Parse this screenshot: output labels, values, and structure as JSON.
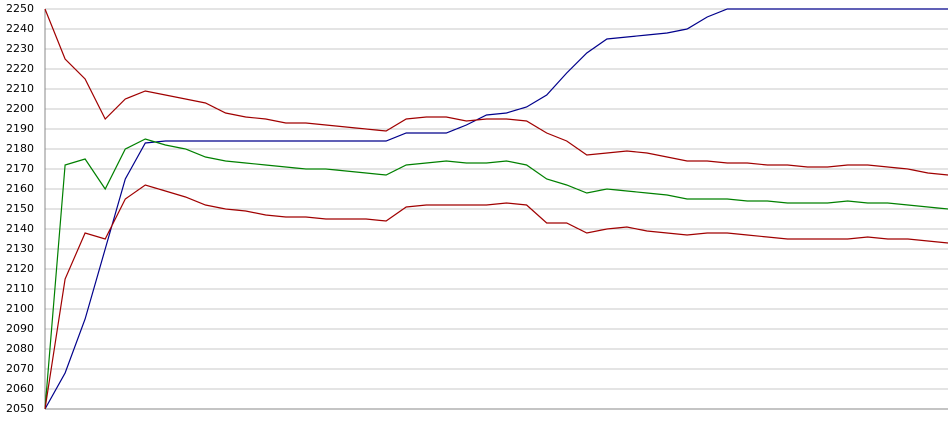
{
  "chart_data": {
    "type": "line",
    "categories": [
      null,
      null,
      null,
      null,
      null,
      null,
      null,
      null,
      null,
      null,
      null,
      null,
      null,
      null,
      null,
      null,
      null,
      null,
      null,
      null,
      null,
      null,
      null,
      null,
      null,
      null,
      null,
      null,
      null,
      null,
      null,
      null,
      null,
      null,
      null,
      null,
      null,
      null,
      null,
      null,
      null,
      null,
      null,
      null,
      null,
      null
    ],
    "series": [
      {
        "color": "#00008b",
        "values": [
          2050,
          2068,
          2095,
          2130,
          2165,
          2183,
          2184,
          2184,
          2184,
          2184,
          2184,
          2184,
          2184,
          2184,
          2184,
          2184,
          2184,
          2184,
          2188,
          2188,
          2188,
          2192,
          2197,
          2198,
          2201,
          2207,
          2218,
          2228,
          2235,
          2236,
          2237,
          2238,
          2240,
          2246,
          2250,
          2250,
          2250,
          2250,
          2250,
          2250,
          2250,
          2250,
          2250,
          2250,
          2250,
          2250
        ]
      },
      {
        "color": "#a00000",
        "values": [
          2250,
          2225,
          2215,
          2195,
          2205,
          2209,
          2207,
          2205,
          2203,
          2198,
          2196,
          2195,
          2193,
          2193,
          2192,
          2191,
          2190,
          2189,
          2195,
          2196,
          2196,
          2194,
          2195,
          2195,
          2194,
          2188,
          2184,
          2177,
          2178,
          2179,
          2178,
          2176,
          2174,
          2174,
          2173,
          2173,
          2172,
          2172,
          2171,
          2171,
          2172,
          2172,
          2171,
          2170,
          2168,
          2167
        ]
      },
      {
        "color": "#008000",
        "values": [
          2050,
          2172,
          2175,
          2160,
          2180,
          2185,
          2182,
          2180,
          2176,
          2174,
          2173,
          2172,
          2171,
          2170,
          2170,
          2169,
          2168,
          2167,
          2172,
          2173,
          2174,
          2173,
          2173,
          2174,
          2172,
          2165,
          2162,
          2158,
          2160,
          2159,
          2158,
          2157,
          2155,
          2155,
          2155,
          2154,
          2154,
          2153,
          2153,
          2153,
          2154,
          2153,
          2153,
          2152,
          2151,
          2150
        ]
      },
      {
        "color": "#a00000",
        "values": [
          2050,
          2115,
          2138,
          2135,
          2155,
          2162,
          2159,
          2156,
          2152,
          2150,
          2149,
          2147,
          2146,
          2146,
          2145,
          2145,
          2145,
          2144,
          2151,
          2152,
          2152,
          2152,
          2152,
          2153,
          2152,
          2143,
          2143,
          2138,
          2140,
          2141,
          2139,
          2138,
          2137,
          2138,
          2138,
          2137,
          2136,
          2135,
          2135,
          2135,
          2135,
          2136,
          2135,
          2135,
          2134,
          2133
        ]
      }
    ],
    "ylim": [
      2050,
      2250
    ],
    "yticks": [
      2050,
      2060,
      2070,
      2080,
      2090,
      2100,
      2110,
      2120,
      2130,
      2140,
      2150,
      2160,
      2170,
      2180,
      2190,
      2200,
      2210,
      2220,
      2230,
      2240,
      2250
    ],
    "grid": true
  }
}
